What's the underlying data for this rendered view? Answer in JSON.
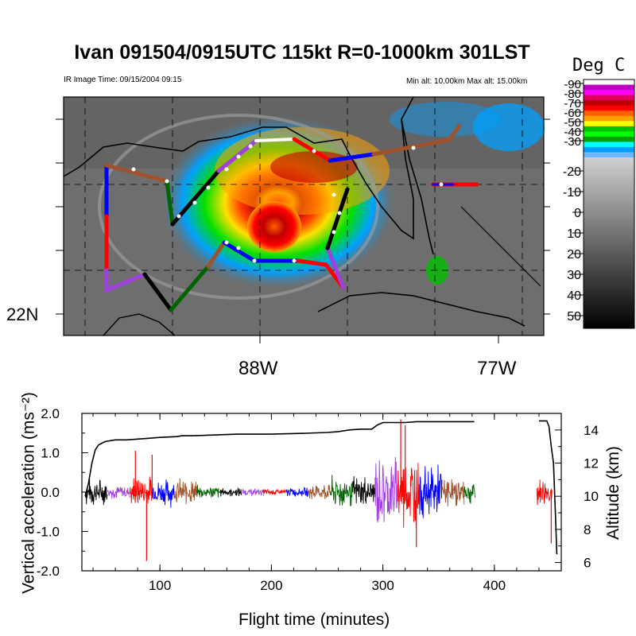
{
  "title": "Ivan 091504/0915UTC 115kt  R=0-1000km 301LST",
  "ir_time": "IR Image Time: 09/15/2004 09:15",
  "alt_range": "Min alt: 10.00km  Max alt: 15.00km",
  "map": {
    "lat_label": "22N",
    "lon_labels": [
      "88W",
      "77W"
    ]
  },
  "colorbar": {
    "title": "Deg C",
    "labels": [
      "-90",
      "-80",
      "-70",
      "-60",
      "-50",
      "-40",
      "-30",
      "-20",
      "-10",
      "0",
      "10",
      "20",
      "30",
      "40",
      "50"
    ],
    "colors": [
      "#ffffff",
      "#c000c0",
      "#ff00ff",
      "#e00060",
      "#c00000",
      "#ff0000",
      "#ff6000",
      "#ffa000",
      "#ffff00",
      "#00c000",
      "#00ff00",
      "#00a000",
      "#00ffff",
      "#00a0ff",
      "#6fb6ff"
    ]
  },
  "segment_colors": [
    "#000000",
    "#a040e0",
    "#ff0000",
    "#0000ff",
    "#a0522d",
    "#006400"
  ],
  "chart_data": {
    "type": "line",
    "xlabel": "Flight time (minutes)",
    "ylabel": "Vertical acceleration (ms⁻²)",
    "ylabel2": "Altitude (km)",
    "xlim": [
      30,
      460
    ],
    "ylim": [
      -2.0,
      2.0
    ],
    "y2lim": [
      5.5,
      15
    ],
    "xticks": [
      100,
      200,
      300,
      400
    ],
    "xtick_labels": [
      "100",
      "200",
      "300",
      "400"
    ],
    "yticks": [
      -2.0,
      -1.0,
      0.0,
      1.0,
      2.0
    ],
    "ytick_labels": [
      "-2.0",
      "-1.0",
      "0.0",
      "1.0",
      "2.0"
    ],
    "y2ticks": [
      6,
      8,
      10,
      12,
      14
    ],
    "y2tick_labels": [
      "6",
      "8",
      "10",
      "12",
      "14"
    ],
    "acceleration_segments": [
      {
        "start": 33,
        "end": 53,
        "color": "#000000",
        "amp": 0.3
      },
      {
        "start": 53,
        "end": 73,
        "color": "#a040e0",
        "amp": 0.15
      },
      {
        "start": 73,
        "end": 93,
        "color": "#ff0000",
        "amp": 0.35
      },
      {
        "start": 93,
        "end": 113,
        "color": "#0000ff",
        "amp": 0.3
      },
      {
        "start": 113,
        "end": 133,
        "color": "#a0522d",
        "amp": 0.3
      },
      {
        "start": 133,
        "end": 153,
        "color": "#006400",
        "amp": 0.15
      },
      {
        "start": 153,
        "end": 173,
        "color": "#000000",
        "amp": 0.1
      },
      {
        "start": 173,
        "end": 193,
        "color": "#a040e0",
        "amp": 0.08
      },
      {
        "start": 193,
        "end": 213,
        "color": "#ff0000",
        "amp": 0.08
      },
      {
        "start": 213,
        "end": 233,
        "color": "#0000ff",
        "amp": 0.1
      },
      {
        "start": 233,
        "end": 253,
        "color": "#a0522d",
        "amp": 0.2
      },
      {
        "start": 253,
        "end": 273,
        "color": "#006400",
        "amp": 0.35
      },
      {
        "start": 273,
        "end": 293,
        "color": "#000000",
        "amp": 0.35
      },
      {
        "start": 293,
        "end": 313,
        "color": "#a040e0",
        "amp": 0.8
      },
      {
        "start": 313,
        "end": 333,
        "color": "#ff0000",
        "amp": 0.85
      },
      {
        "start": 333,
        "end": 353,
        "color": "#0000ff",
        "amp": 0.6
      },
      {
        "start": 353,
        "end": 373,
        "color": "#a0522d",
        "amp": 0.3
      },
      {
        "start": 373,
        "end": 383,
        "color": "#006400",
        "amp": 0.25
      },
      {
        "start": 438,
        "end": 452,
        "color": "#ff0000",
        "amp": 0.3
      }
    ],
    "acceleration_spikes": [
      {
        "x": 78,
        "y": 1.05,
        "color": "#ff0000"
      },
      {
        "x": 88,
        "y": -1.75,
        "color": "#ff0000"
      },
      {
        "x": 93,
        "y": 0.95,
        "color": "#ff0000"
      },
      {
        "x": 316,
        "y": 1.85,
        "color": "#ff0000"
      },
      {
        "x": 320,
        "y": 1.7,
        "color": "#ff0000"
      },
      {
        "x": 330,
        "y": -1.4,
        "color": "#ff0000"
      },
      {
        "x": 451,
        "y": -1.3,
        "color": "#ff0000"
      }
    ],
    "altitude": {
      "x": [
        33,
        36,
        39,
        42,
        45,
        48,
        51,
        55,
        60,
        70,
        80,
        90,
        100,
        115,
        120,
        130,
        150,
        170,
        200,
        230,
        250,
        260,
        270,
        280,
        290,
        295,
        300,
        310,
        320,
        330,
        340,
        350,
        360,
        370,
        382
      ],
      "y": [
        10.0,
        10.8,
        12.0,
        12.8,
        13.1,
        13.2,
        13.3,
        13.35,
        13.4,
        13.4,
        13.45,
        13.5,
        13.55,
        13.6,
        13.65,
        13.65,
        13.7,
        13.75,
        13.75,
        13.8,
        13.85,
        13.9,
        14.0,
        14.05,
        14.05,
        14.3,
        14.45,
        14.45,
        14.45,
        14.5,
        14.5,
        14.5,
        14.5,
        14.5,
        14.5
      ],
      "x2": [
        440,
        447,
        449,
        451,
        453,
        455,
        456
      ],
      "y2": [
        14.55,
        14.55,
        14.2,
        13.0,
        12.0,
        8.5,
        6.5
      ]
    }
  }
}
